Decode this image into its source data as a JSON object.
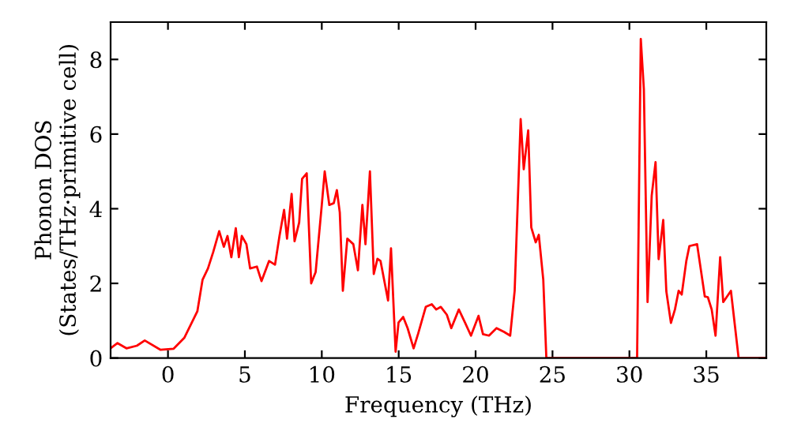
{
  "chart_data": {
    "type": "line",
    "xlabel": "Frequency (THz)",
    "ylabel": "Phonon DOS\n(States/THz·primitive cell)",
    "xlim": [
      -3.73,
      38.9
    ],
    "ylim": [
      0,
      9
    ],
    "xticks": [
      0,
      5,
      10,
      15,
      20,
      25,
      30,
      35
    ],
    "yticks": [
      0,
      2,
      4,
      6,
      8
    ],
    "grid": false,
    "legend": false,
    "marker": "none",
    "line_style": "solid",
    "series": [
      {
        "color": "#ff0000",
        "x": [
          -3.73,
          -3.28,
          -2.7,
          -2.02,
          -1.51,
          -0.48,
          0.37,
          1.06,
          1.91,
          2.25,
          2.6,
          2.94,
          3.33,
          3.63,
          3.87,
          4.12,
          4.41,
          4.61,
          4.8,
          5.1,
          5.34,
          5.78,
          6.08,
          6.57,
          6.96,
          7.25,
          7.55,
          7.74,
          8.04,
          8.23,
          8.53,
          8.72,
          9.02,
          9.31,
          9.6,
          10.0,
          10.19,
          10.49,
          10.78,
          10.98,
          11.17,
          11.37,
          11.66,
          12.05,
          12.35,
          12.64,
          12.84,
          13.13,
          13.38,
          13.62,
          13.82,
          14.31,
          14.5,
          14.8,
          14.99,
          15.29,
          15.58,
          15.97,
          16.27,
          16.76,
          17.15,
          17.44,
          17.74,
          18.13,
          18.42,
          18.91,
          19.31,
          19.7,
          20.19,
          20.48,
          20.87,
          21.36,
          21.85,
          22.25,
          22.54,
          22.93,
          23.13,
          23.42,
          23.62,
          23.91,
          24.11,
          24.4,
          24.6,
          30.5,
          30.74,
          30.94,
          31.18,
          31.45,
          31.7,
          31.9,
          32.2,
          32.4,
          32.7,
          32.96,
          33.2,
          33.4,
          33.7,
          33.9,
          34.4,
          34.9,
          35.1,
          35.35,
          35.6,
          35.9,
          36.1,
          36.6,
          37.1,
          38.9
        ],
        "values": [
          0.26,
          0.4,
          0.26,
          0.33,
          0.47,
          0.22,
          0.25,
          0.54,
          1.25,
          2.1,
          2.4,
          2.84,
          3.4,
          2.98,
          3.27,
          2.7,
          3.48,
          2.7,
          3.27,
          3.05,
          2.4,
          2.45,
          2.06,
          2.6,
          2.5,
          3.27,
          3.97,
          3.2,
          4.4,
          3.13,
          3.63,
          4.8,
          4.95,
          2.0,
          2.3,
          4.1,
          5.0,
          4.1,
          4.15,
          4.5,
          3.9,
          1.8,
          3.2,
          3.05,
          2.35,
          4.1,
          3.05,
          5.0,
          2.25,
          2.66,
          2.6,
          1.54,
          2.94,
          0.17,
          0.95,
          1.1,
          0.8,
          0.26,
          0.66,
          1.37,
          1.44,
          1.3,
          1.37,
          1.16,
          0.8,
          1.3,
          0.95,
          0.6,
          1.13,
          0.64,
          0.6,
          0.8,
          0.7,
          0.6,
          1.8,
          6.4,
          5.06,
          6.1,
          3.5,
          3.1,
          3.3,
          2.1,
          0.0,
          0.0,
          8.55,
          7.2,
          1.5,
          4.35,
          5.25,
          2.65,
          3.7,
          1.79,
          0.94,
          1.3,
          1.8,
          1.7,
          2.6,
          3.0,
          3.05,
          1.65,
          1.63,
          1.3,
          0.6,
          2.7,
          1.5,
          1.8,
          0.0,
          0.0
        ]
      }
    ]
  }
}
